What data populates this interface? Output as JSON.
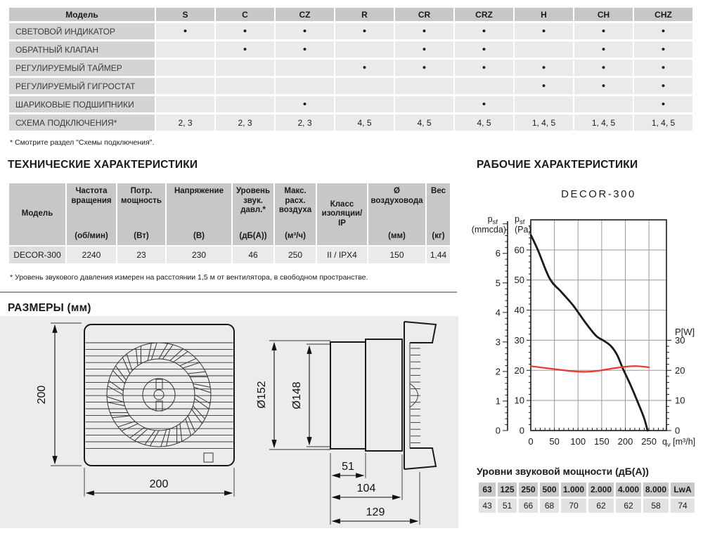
{
  "features": {
    "model_header": "Модель",
    "models": [
      "S",
      "C",
      "CZ",
      "R",
      "CR",
      "CRZ",
      "H",
      "CH",
      "CHZ"
    ],
    "bullet": "•",
    "rows": [
      {
        "label": "СВЕТОВОЙ ИНДИКАТОР",
        "cells": [
          1,
          1,
          1,
          1,
          1,
          1,
          1,
          1,
          1
        ]
      },
      {
        "label": "ОБРАТНЫЙ КЛАПАН",
        "cells": [
          0,
          1,
          1,
          0,
          1,
          1,
          0,
          1,
          1
        ]
      },
      {
        "label": "РЕГУЛИРУЕМЫЙ ТАЙМЕР",
        "cells": [
          0,
          0,
          0,
          1,
          1,
          1,
          1,
          1,
          1
        ]
      },
      {
        "label": "РЕГУЛИРУЕМЫЙ ГИГРОСТАТ",
        "cells": [
          0,
          0,
          0,
          0,
          0,
          0,
          1,
          1,
          1
        ]
      },
      {
        "label": "ШАРИКОВЫЕ ПОДШИПНИКИ",
        "cells": [
          0,
          0,
          1,
          0,
          0,
          1,
          0,
          0,
          1
        ]
      },
      {
        "label": "СХЕМА ПОДКЛЮЧЕНИЯ*",
        "cells": [
          "2, 3",
          "2, 3",
          "2, 3",
          "4, 5",
          "4, 5",
          "4, 5",
          "1, 4, 5",
          "1, 4, 5",
          "1, 4, 5"
        ]
      }
    ],
    "footnote": "* Смотрите раздел \"Схемы подключения\"."
  },
  "tech": {
    "title": "ТЕХНИЧЕСКИЕ ХАРАКТЕРИСТИКИ",
    "headers": [
      {
        "label": "Модель",
        "unit": ""
      },
      {
        "label": "Частота вращения",
        "unit": "(об/мин)"
      },
      {
        "label": "Потр. мощность",
        "unit": "(Вт)"
      },
      {
        "label": "Напряжение",
        "unit": "(В)"
      },
      {
        "label": "Уровень звук. давл.*",
        "unit": "(дБ(А))"
      },
      {
        "label": "Макс. расх. воздуха",
        "unit": "(м³/ч)"
      },
      {
        "label": "Класс изоляции/ IP",
        "unit": ""
      },
      {
        "label": "Ø воздуховода",
        "unit": "(мм)"
      },
      {
        "label": "Вес",
        "unit": "(кг)"
      }
    ],
    "row": [
      "DECOR-300",
      "2240",
      "23",
      "230",
      "46",
      "250",
      "II / IPX4",
      "150",
      "1,44"
    ],
    "footnote": "* Уровень звукового давления измерен на расстоянии 1,5 м от вентилятора, в свободном пространстве."
  },
  "dims": {
    "title": "РАЗМЕРЫ (мм)",
    "front_height": "200",
    "front_width": "200",
    "duct_outer": "Ø152",
    "duct_inner": "Ø148",
    "duct_length": "51",
    "body_length": "104",
    "total_depth": "129"
  },
  "perf": {
    "title": "РАБОЧИЕ ХАРАКТЕРИСТИКИ",
    "chart_data": {
      "type": "line",
      "title": "DECOR-300",
      "x_axis": {
        "label_base": "q",
        "label_sub": "v",
        "label_unit": "[m³/h]",
        "ticks": [
          0,
          50,
          100,
          150,
          200,
          250
        ],
        "minor_step": 10,
        "range": [
          0,
          287
        ]
      },
      "y_left_pa": {
        "label_base": "p",
        "label_sub": "sf",
        "label_unit": "(Pa)",
        "ticks": [
          0,
          10,
          20,
          30,
          40,
          50,
          60
        ],
        "minor_step": 2,
        "range": [
          0,
          70
        ]
      },
      "y_left_mmcda": {
        "label_base": "p",
        "label_sub": "sf",
        "label_unit": "(mmcda)",
        "ticks": [
          0,
          1,
          2,
          3,
          4,
          5,
          6
        ],
        "minor_step": 0.2,
        "pa_per_unit": 9.81
      },
      "y_right_power": {
        "label": "P[W]",
        "ticks": [
          0,
          10,
          20,
          30
        ],
        "minor_step": 2,
        "max": 31,
        "color": "#e8392f"
      },
      "grid": true,
      "series": [
        {
          "name": "static pressure",
          "color": "#1a1a1a",
          "width": 2.8,
          "points": [
            [
              0,
              65
            ],
            [
              15,
              60
            ],
            [
              40,
              50.5
            ],
            [
              65,
              46
            ],
            [
              90,
              41.5
            ],
            [
              115,
              36
            ],
            [
              138,
              31.5
            ],
            [
              155,
              29.8
            ],
            [
              170,
              28
            ],
            [
              183,
              25
            ],
            [
              195,
              20.5
            ],
            [
              210,
              15.5
            ],
            [
              228,
              8.8
            ],
            [
              240,
              4
            ],
            [
              247,
              0
            ]
          ]
        },
        {
          "name": "power",
          "color": "#e8392f",
          "width": 2.2,
          "points": [
            [
              0,
              21.4
            ],
            [
              30,
              20.8
            ],
            [
              60,
              20.2
            ],
            [
              90,
              19.7
            ],
            [
              115,
              19.5
            ],
            [
              140,
              19.8
            ],
            [
              160,
              20.3
            ],
            [
              180,
              20.8
            ],
            [
              200,
              21.2
            ],
            [
              225,
              21.4
            ],
            [
              250,
              21.0
            ]
          ]
        }
      ]
    },
    "sound": {
      "title": "Уровни звуковой мощности (дБ(А))",
      "bands": [
        "63",
        "125",
        "250",
        "500",
        "1.000",
        "2.000",
        "4.000",
        "8.000",
        "LwA"
      ],
      "values": [
        "43",
        "51",
        "66",
        "68",
        "70",
        "62",
        "62",
        "58",
        "74"
      ]
    }
  },
  "colors": {
    "accent_red": "#e8392f",
    "header_gray": "#c7c7c7",
    "label_gray": "#d4d4d4",
    "cell_gray": "#eaeaea",
    "panel_gray": "#ececec"
  }
}
